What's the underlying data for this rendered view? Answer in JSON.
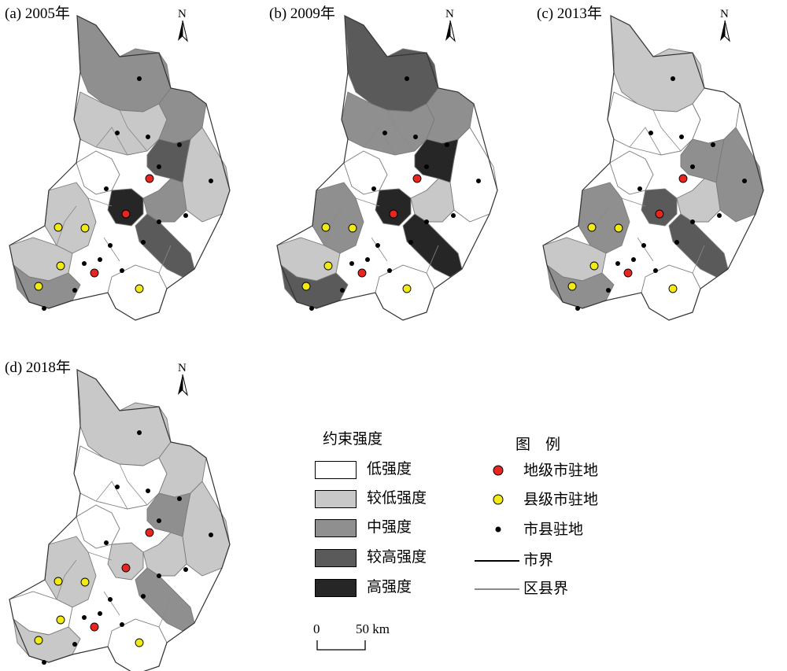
{
  "panels": [
    {
      "label": "(a) 2005年",
      "classes": {
        "north": 2,
        "northeast": 1,
        "east": 2,
        "eastfar": 1,
        "center": 4,
        "core": 3,
        "southeast": 3,
        "southwest": 1,
        "west": 1,
        "south": 0,
        "white": 0,
        "west2": 2,
        "sw2": 2
      }
    },
    {
      "label": "(b) 2009年",
      "classes": {
        "north": 3,
        "northeast": 2,
        "east": 2,
        "eastfar": 0,
        "center": 4,
        "core": 4,
        "southeast": 4,
        "southwest": 2,
        "west": 1,
        "south": 0,
        "white": 0,
        "west2": 1,
        "sw2": 3
      }
    },
    {
      "label": "(c) 2013年",
      "classes": {
        "north": 1,
        "northeast": 0,
        "east": 0,
        "eastfar": 2,
        "center": 3,
        "core": 2,
        "southeast": 3,
        "southwest": 2,
        "west": 1,
        "south": 0,
        "white": 0,
        "west2": 1,
        "sw2": 2
      }
    },
    {
      "label": "(d) 2018年",
      "classes": {
        "north": 1,
        "northeast": 0,
        "east": 1,
        "eastfar": 1,
        "center": 1,
        "core": 2,
        "southeast": 2,
        "southwest": 1,
        "west": 0,
        "south": 0,
        "white": 0,
        "west2": 1,
        "sw2": 1
      }
    }
  ],
  "north_label": "N",
  "legend": {
    "title": "约束强度",
    "items": [
      {
        "label": "低强度",
        "color": "#ffffff"
      },
      {
        "label": "较低强度",
        "color": "#c8c8c8"
      },
      {
        "label": "中强度",
        "color": "#8f8f8f"
      },
      {
        "label": "较高强度",
        "color": "#5a5a5a"
      },
      {
        "label": "高强度",
        "color": "#262626"
      }
    ]
  },
  "symbols": {
    "title": "图　例",
    "items": [
      {
        "label": "地级市驻地",
        "kind": "red-dot",
        "color": "#e8261f"
      },
      {
        "label": "县级市驻地",
        "kind": "yellow-dot",
        "color": "#f2ea14"
      },
      {
        "label": "市县驻地",
        "kind": "black-dot",
        "color": "#000000"
      },
      {
        "label": "市界",
        "kind": "black-line",
        "color": "#000000"
      },
      {
        "label": "区县界",
        "kind": "gray-line",
        "color": "#8a8a8a"
      }
    ]
  },
  "scale": {
    "zero": "0",
    "end": "50 km"
  }
}
